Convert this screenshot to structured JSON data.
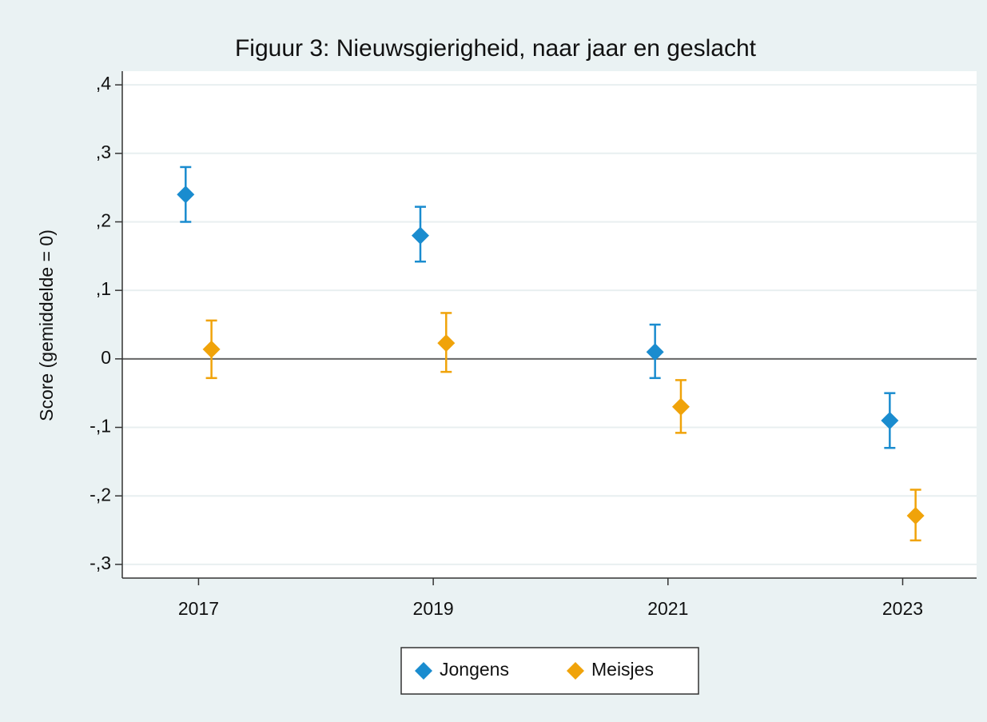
{
  "chart_data": {
    "type": "scatter",
    "title": "Figuur 3: Nieuwsgierigheid, naar jaar en geslacht",
    "y_label": "Score (gemiddelde = 0)",
    "series": [
      {
        "name": "Jongens",
        "color": "#1a8ccf",
        "x": [
          2016.89,
          2018.89,
          2020.89,
          2022.89
        ],
        "values": [
          0.24,
          0.18,
          0.01,
          -0.09
        ],
        "ci_low": [
          0.2,
          0.142,
          -0.028,
          -0.13
        ],
        "ci_high": [
          0.28,
          0.222,
          0.05,
          -0.05
        ]
      },
      {
        "name": "Meisjes",
        "color": "#f0a30a",
        "x": [
          2017.11,
          2019.11,
          2021.11,
          2023.11
        ],
        "values": [
          0.014,
          0.023,
          -0.07,
          -0.229
        ],
        "ci_low": [
          -0.028,
          -0.019,
          -0.108,
          -0.265
        ],
        "ci_high": [
          0.056,
          0.067,
          -0.031,
          -0.191
        ]
      }
    ],
    "xlim": [
      2016.35,
      2023.63
    ],
    "xticks": [
      2017,
      2019,
      2021,
      2023
    ],
    "ylim": [
      -0.32,
      0.42
    ],
    "yticks": [
      {
        "value": -0.3,
        "label": "-,3"
      },
      {
        "value": -0.2,
        "label": "-,2"
      },
      {
        "value": -0.1,
        "label": "-,1"
      },
      0,
      {
        "value": 0.1,
        "label": ",1"
      },
      {
        "value": 0.2,
        "label": ",2"
      },
      {
        "value": 0.3,
        "label": ",3"
      },
      {
        "value": 0.4,
        "label": ",4"
      }
    ],
    "yline": 0,
    "grid": true,
    "legend": "bottom"
  }
}
